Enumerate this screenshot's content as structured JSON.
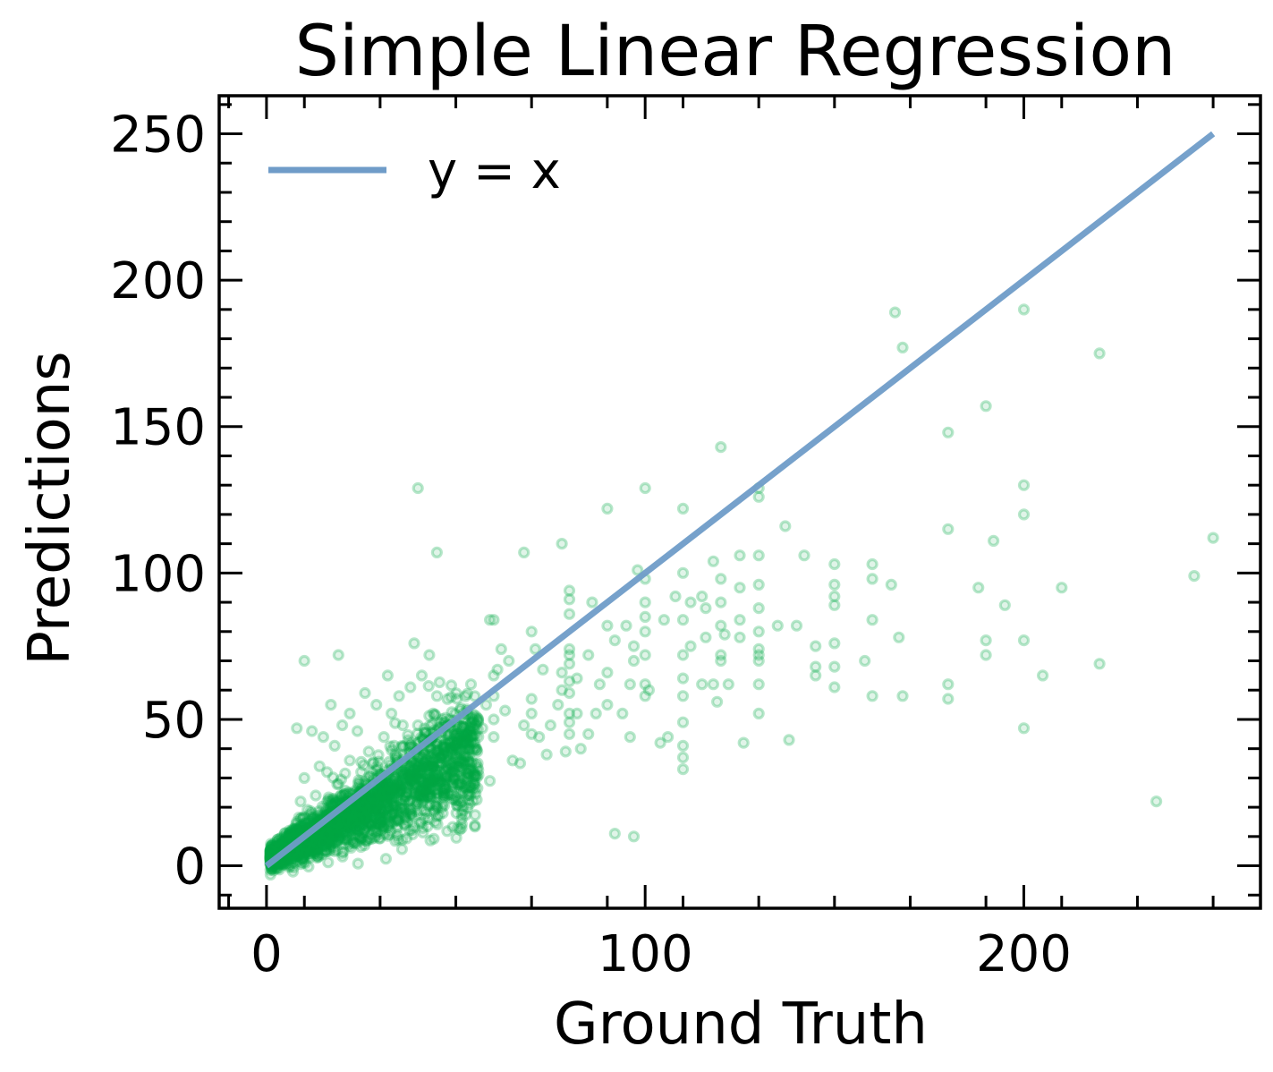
{
  "chart_data": {
    "type": "scatter",
    "title": "Simple Linear Regression",
    "xlabel": "Ground Truth",
    "ylabel": "Predictions",
    "xlim": [
      -12.5,
      262.5
    ],
    "ylim": [
      -14.5,
      263
    ],
    "xticks": [
      0,
      100,
      200
    ],
    "yticks": [
      0,
      50,
      100,
      150,
      200,
      250
    ],
    "grid": false,
    "legend": {
      "position": "top-left",
      "entries": [
        {
          "label": "y = x",
          "color": "#6f9cc8"
        }
      ]
    },
    "reference_line": {
      "label": "y = x",
      "from": [
        0,
        0
      ],
      "to": [
        250,
        250
      ],
      "color": "#6f9cc8"
    },
    "point_color": "#00a844",
    "point_style": "semi-transparent hollow circles",
    "dense_cluster_range": {
      "x": [
        0,
        55
      ],
      "y": [
        -3,
        70
      ]
    },
    "series": [
      {
        "name": "",
        "points": [
          [
            40,
            129
          ],
          [
            45,
            107
          ],
          [
            60,
            84
          ],
          [
            59,
            84
          ],
          [
            68,
            107
          ],
          [
            78,
            110
          ],
          [
            90,
            122
          ],
          [
            100,
            129
          ],
          [
            110,
            122
          ],
          [
            120,
            143
          ],
          [
            130,
            129
          ],
          [
            130,
            126
          ],
          [
            118,
            104
          ],
          [
            125,
            106
          ],
          [
            130,
            106
          ],
          [
            137,
            116
          ],
          [
            142,
            106
          ],
          [
            150,
            103
          ],
          [
            160,
            103
          ],
          [
            160,
            98
          ],
          [
            165,
            96
          ],
          [
            160,
            84
          ],
          [
            167,
            78
          ],
          [
            166,
            189
          ],
          [
            168,
            177
          ],
          [
            180,
            148
          ],
          [
            180,
            115
          ],
          [
            190,
            157
          ],
          [
            192,
            111
          ],
          [
            188,
            95
          ],
          [
            190,
            77
          ],
          [
            190,
            72
          ],
          [
            195,
            89
          ],
          [
            200,
            190
          ],
          [
            200,
            130
          ],
          [
            200,
            120
          ],
          [
            200,
            77
          ],
          [
            200,
            47
          ],
          [
            205,
            65
          ],
          [
            210,
            95
          ],
          [
            220,
            175
          ],
          [
            220,
            69
          ],
          [
            235,
            22
          ],
          [
            245,
            99
          ],
          [
            250,
            112
          ],
          [
            180,
            62
          ],
          [
            180,
            57
          ],
          [
            168,
            58
          ],
          [
            160,
            58
          ],
          [
            158,
            70
          ],
          [
            150,
            96
          ],
          [
            150,
            92
          ],
          [
            150,
            89
          ],
          [
            150,
            76
          ],
          [
            150,
            68
          ],
          [
            150,
            61
          ],
          [
            145,
            75
          ],
          [
            145,
            68
          ],
          [
            145,
            65
          ],
          [
            138,
            43
          ],
          [
            140,
            82
          ],
          [
            135,
            82
          ],
          [
            130,
            96
          ],
          [
            130,
            88
          ],
          [
            130,
            80
          ],
          [
            130,
            74
          ],
          [
            130,
            72
          ],
          [
            130,
            70
          ],
          [
            130,
            62
          ],
          [
            130,
            52
          ],
          [
            125,
            95
          ],
          [
            125,
            84
          ],
          [
            125,
            78
          ],
          [
            126,
            42
          ],
          [
            122,
            62
          ],
          [
            121,
            79
          ],
          [
            120,
            98
          ],
          [
            120,
            90
          ],
          [
            120,
            82
          ],
          [
            120,
            72
          ],
          [
            120,
            70
          ],
          [
            119,
            56
          ],
          [
            118,
            62
          ],
          [
            115,
            62
          ],
          [
            116,
            78
          ],
          [
            116,
            88
          ],
          [
            115,
            92
          ],
          [
            112,
            90
          ],
          [
            112,
            75
          ],
          [
            110,
            100
          ],
          [
            110,
            84
          ],
          [
            110,
            72
          ],
          [
            110,
            64
          ],
          [
            110,
            58
          ],
          [
            110,
            49
          ],
          [
            110,
            41
          ],
          [
            110,
            37
          ],
          [
            110,
            33
          ],
          [
            108,
            92
          ],
          [
            105,
            84
          ],
          [
            106,
            44
          ],
          [
            104,
            42
          ],
          [
            101,
            60
          ],
          [
            100,
            98
          ],
          [
            100,
            90
          ],
          [
            100,
            85
          ],
          [
            100,
            80
          ],
          [
            100,
            72
          ],
          [
            100,
            62
          ],
          [
            100,
            58
          ],
          [
            98,
            101
          ],
          [
            97,
            75
          ],
          [
            97,
            70
          ],
          [
            96,
            62
          ],
          [
            96,
            44
          ],
          [
            94,
            52
          ],
          [
            92,
            11
          ],
          [
            97,
            10
          ],
          [
            95,
            82
          ],
          [
            92,
            77
          ],
          [
            90,
            82
          ],
          [
            90,
            66
          ],
          [
            90,
            55
          ],
          [
            88,
            62
          ],
          [
            87,
            52
          ],
          [
            86,
            90
          ],
          [
            85,
            72
          ],
          [
            85,
            45
          ],
          [
            83,
            40
          ],
          [
            82,
            64
          ],
          [
            82,
            52
          ],
          [
            80,
            94
          ],
          [
            80,
            91
          ],
          [
            80,
            86
          ],
          [
            80,
            74
          ],
          [
            80,
            72
          ],
          [
            80,
            69
          ],
          [
            80,
            63
          ],
          [
            80,
            59
          ],
          [
            80,
            52
          ],
          [
            80,
            49
          ],
          [
            80,
            45
          ],
          [
            79,
            39
          ],
          [
            78,
            60
          ],
          [
            78,
            66
          ],
          [
            77,
            55
          ],
          [
            75,
            48
          ],
          [
            74,
            38
          ],
          [
            73,
            67
          ],
          [
            72,
            44
          ],
          [
            71,
            74
          ],
          [
            70,
            80
          ],
          [
            70,
            57
          ],
          [
            70,
            52
          ],
          [
            70,
            45
          ],
          [
            68,
            48
          ],
          [
            67,
            35
          ],
          [
            65,
            36
          ],
          [
            64,
            70
          ],
          [
            63,
            53
          ],
          [
            62,
            74
          ],
          [
            61,
            67
          ],
          [
            60,
            65
          ],
          [
            60,
            58
          ],
          [
            60,
            50
          ],
          [
            60,
            44
          ],
          [
            59,
            29
          ],
          [
            58,
            55
          ],
          [
            57,
            47
          ],
          [
            56,
            31
          ],
          [
            55,
            42
          ],
          [
            55,
            28
          ],
          [
            54,
            62
          ],
          [
            53,
            37
          ],
          [
            52,
            52
          ],
          [
            51,
            27
          ],
          [
            50,
            45
          ],
          [
            48,
            48
          ],
          [
            47,
            25
          ],
          [
            46,
            38
          ],
          [
            45,
            58
          ],
          [
            45,
            17
          ],
          [
            44,
            52
          ],
          [
            43,
            72
          ],
          [
            42,
            34
          ],
          [
            41,
            65
          ],
          [
            40,
            48
          ],
          [
            40,
            22
          ],
          [
            39,
            76
          ],
          [
            38,
            42
          ],
          [
            38,
            61
          ],
          [
            36,
            48
          ],
          [
            35,
            58
          ],
          [
            35,
            26
          ],
          [
            34,
            18
          ],
          [
            33,
            52
          ],
          [
            32,
            65
          ],
          [
            32,
            31
          ],
          [
            31,
            44
          ],
          [
            30,
            12
          ],
          [
            29,
            55
          ],
          [
            28,
            24
          ],
          [
            27,
            39
          ],
          [
            26,
            59
          ],
          [
            25,
            32
          ],
          [
            24,
            46
          ],
          [
            24,
            13
          ],
          [
            23,
            21
          ],
          [
            22,
            52
          ],
          [
            22,
            36
          ],
          [
            21,
            9
          ],
          [
            20,
            48
          ],
          [
            19,
            72
          ],
          [
            19,
            28
          ],
          [
            18,
            41
          ],
          [
            18,
            15
          ],
          [
            17,
            55
          ],
          [
            16,
            32
          ],
          [
            15,
            44
          ],
          [
            15,
            8
          ],
          [
            14,
            34
          ],
          [
            13,
            24
          ],
          [
            12,
            46
          ],
          [
            12,
            18
          ],
          [
            11,
            9
          ],
          [
            10,
            70
          ],
          [
            10,
            30
          ],
          [
            9,
            22
          ],
          [
            8,
            15
          ],
          [
            7,
            5
          ],
          [
            7,
            -2
          ],
          [
            6,
            12
          ],
          [
            5,
            6
          ],
          [
            4,
            3
          ],
          [
            3,
            9
          ],
          [
            2,
            2
          ],
          [
            8,
            47
          ]
        ]
      }
    ]
  }
}
